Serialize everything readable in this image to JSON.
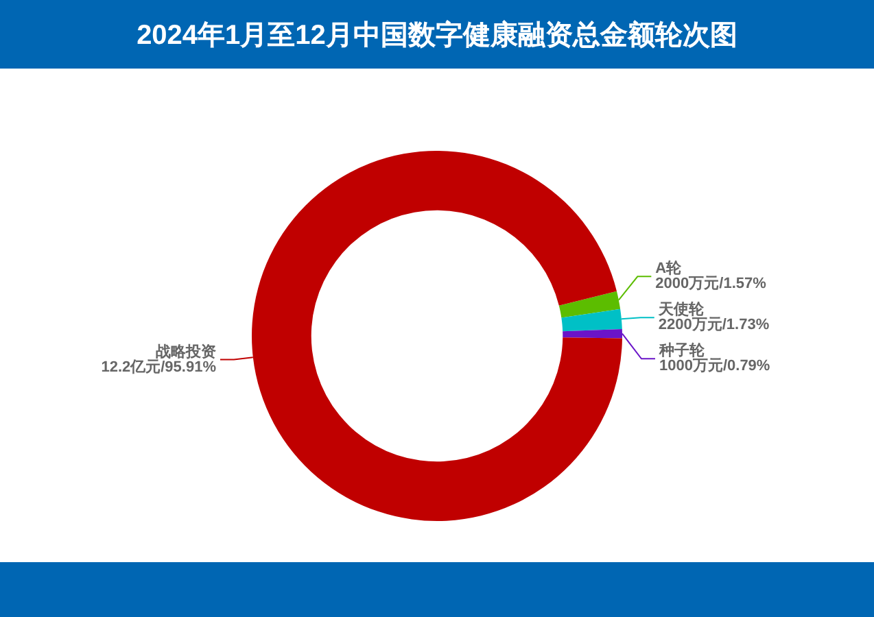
{
  "chart_data": {
    "type": "donut",
    "title": "2024年1月至12月中国数字健康融资总金额轮次图",
    "categories": [
      "A轮",
      "天使轮",
      "种子轮",
      "战略投资"
    ],
    "values": [
      1.57,
      1.73,
      0.79,
      95.91
    ],
    "colors": [
      "#5cbd00",
      "#00c0c6",
      "#6a14c8",
      "#c00000"
    ],
    "value_labels": [
      "2000万元/1.57%",
      "2200万元/1.73%",
      "1000万元/0.79%",
      "12.2亿元/95.91%"
    ],
    "legend": false
  }
}
